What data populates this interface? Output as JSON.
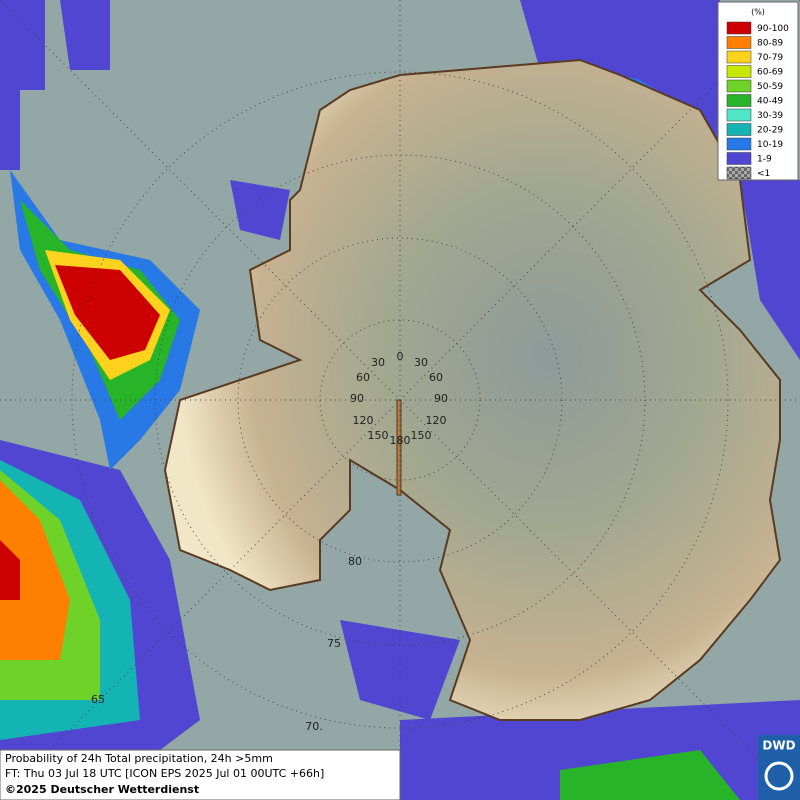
{
  "legend": {
    "title": "(%)",
    "items": [
      {
        "label": "90-100",
        "color": "#cc0000"
      },
      {
        "label": "80-89",
        "color": "#ff8000"
      },
      {
        "label": "70-79",
        "color": "#ffd21e"
      },
      {
        "label": "60-69",
        "color": "#c8e600"
      },
      {
        "label": "50-59",
        "color": "#6ed228"
      },
      {
        "label": "40-49",
        "color": "#28b428"
      },
      {
        "label": "30-39",
        "color": "#50e6c8"
      },
      {
        "label": "20-29",
        "color": "#14b4b4"
      },
      {
        "label": "10-19",
        "color": "#2878e6"
      },
      {
        "label": "1-9",
        "color": "#5046d2"
      },
      {
        "label": "<1",
        "color": "checker"
      }
    ]
  },
  "graticule": {
    "meridian_labels": [
      "0",
      "30",
      "30",
      "60",
      "60",
      "90",
      "90",
      "120",
      "120",
      "150",
      "150",
      "180"
    ],
    "latitude_labels": [
      "80",
      "75",
      "70.",
      "65"
    ]
  },
  "caption": {
    "line1": "Probability of 24h Total precipitation, 24h >5mm",
    "line2": "FT: Thu 03 Jul 18 UTC [ICON EPS 2025 Jul 01 00UTC +66h]",
    "line3": "©2025 Deutscher Wetterdienst"
  },
  "logo": "DWD"
}
